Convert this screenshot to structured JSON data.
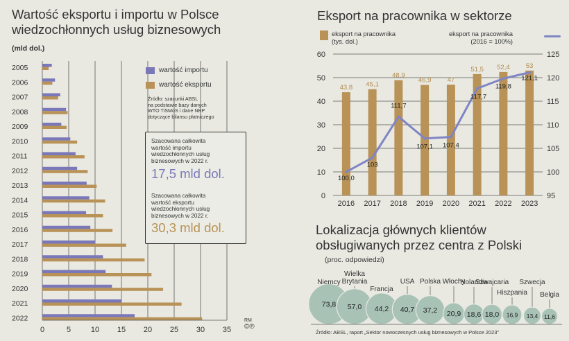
{
  "left_chart": {
    "title_line1": "Wartość eksportu i importu w Polsce",
    "title_line2": "wiedzochłonnych usług biznesowych",
    "unit": "(mld dol.)",
    "legend_import": "wartość importu",
    "legend_export": "wartość eksportu",
    "source_lines": [
      "Źródło: szacunki ABSL",
      "na podstawie bazy danych",
      "WTO TiSMoS i dane NBP",
      "dotyczące bilansu płatniczego"
    ],
    "box_import_text": [
      "Szacowana całkowita",
      "wartość importu",
      "wiedzochłonnych usług",
      "biznesowych w 2022 r."
    ],
    "box_import_value": "17,5 mld dol.",
    "box_export_text": [
      "Szacowana całkowita",
      "wartość eksportu",
      "wiedzochłonnych usług",
      "biznesowych w 2022 r."
    ],
    "box_export_value": "30,3 mld dol.",
    "credit_line1": "RM",
    "credit_line2": "©℗"
  },
  "right_chart": {
    "title": "Eksport na pracownika w sektorze",
    "legend_bar_line1": "eksport na pracownika",
    "legend_bar_line2": "(tys. dol.)",
    "legend_line_line1": "eksport na pracownika",
    "legend_line_line2": "(2016 = 100%)"
  },
  "bubble_chart": {
    "title_line1": "Lokalizacja głównych klientów",
    "title_line2": "obsługiwanych przez centra z Polski",
    "unit": "(proc. odpowiedzi)",
    "source": "Źródło: ABSL, raport „Sektor nowoczesnych usług biznesowych w Polsce 2023”"
  },
  "colors": {
    "import": "#7a78b8",
    "export": "#b89256",
    "line": "#7f84c4",
    "bubble": "#a8c2b6",
    "background": "#e9e9e2"
  },
  "chart_data": [
    {
      "type": "bar",
      "orientation": "horizontal",
      "title": "Wartość eksportu i importu w Polsce wiedzochłonnych usług biznesowych",
      "unit": "mld dol.",
      "categories": [
        "2005",
        "2006",
        "2007",
        "2008",
        "2009",
        "2010",
        "2011",
        "2012",
        "2013",
        "2014",
        "2015",
        "2016",
        "2017",
        "2018",
        "2019",
        "2020",
        "2021",
        "2022"
      ],
      "series": [
        {
          "name": "wartość importu",
          "values": [
            1.8,
            2.4,
            3.4,
            4.5,
            3.6,
            5.3,
            6.3,
            6.6,
            8.4,
            8.9,
            8.3,
            9.1,
            10.0,
            11.5,
            12.0,
            13.2,
            15.0,
            17.5
          ]
        },
        {
          "name": "wartość eksportu",
          "values": [
            1.2,
            1.9,
            3.0,
            4.8,
            4.6,
            6.6,
            8.0,
            8.6,
            10.3,
            11.9,
            11.5,
            13.3,
            15.9,
            19.4,
            20.7,
            22.9,
            26.4,
            30.3
          ]
        }
      ],
      "xlim": [
        0,
        35
      ],
      "xticks": [
        "0",
        "5",
        "10",
        "15",
        "20",
        "25",
        "30",
        "35"
      ]
    },
    {
      "type": "bar+line",
      "title": "Eksport na pracownika w sektorze",
      "categories": [
        "2016",
        "2017",
        "2018",
        "2019",
        "2020",
        "2021",
        "2022",
        "2023"
      ],
      "series": [
        {
          "name": "eksport na pracownika (tys. dol.)",
          "axis": "left",
          "values": [
            43.8,
            45.1,
            48.9,
            46.9,
            47,
            51.5,
            52.4,
            53
          ],
          "labels": [
            "43,8",
            "45,1",
            "48,9",
            "46,9",
            "47",
            "51,5",
            "52,4",
            "53"
          ]
        },
        {
          "name": "eksport na pracownika (2016 = 100%)",
          "axis": "right",
          "values": [
            100.0,
            103,
            111.7,
            107.1,
            107.4,
            117.7,
            119.8,
            121.1
          ],
          "labels": [
            "100,0",
            "103",
            "111,7",
            "107,1",
            "107,4",
            "117,7",
            "119,8",
            "121,1"
          ]
        }
      ],
      "ylim_left": [
        0,
        60
      ],
      "yticks_left": [
        "0",
        "10",
        "20",
        "30",
        "40",
        "50",
        "60"
      ],
      "ylim_right": [
        95,
        125
      ],
      "yticks_right": [
        "95",
        "100",
        "105",
        "110",
        "115",
        "120",
        "125"
      ]
    },
    {
      "type": "bubble",
      "title": "Lokalizacja głównych klientów obsługiwanych przez centra z Polski",
      "unit": "proc. odpowiedzi",
      "categories": [
        "Niemcy",
        "Wielka Brytania",
        "Francja",
        "USA",
        "Polska",
        "Włochy",
        "Holandia",
        "Szwajcaria",
        "Hiszpania",
        "Szwecja",
        "Belgia"
      ],
      "values": [
        73.8,
        57.0,
        44.2,
        40.7,
        37.2,
        20.9,
        18.6,
        18.0,
        16.9,
        13.4,
        11.6
      ],
      "labels": [
        "73,8",
        "57,0",
        "44,2",
        "40,7",
        "37,2",
        "20,9",
        "18,6",
        "18,0",
        "16,9",
        "13,4",
        "11,6"
      ],
      "category_label_lines": [
        [
          "Niemcy"
        ],
        [
          "Wielka",
          "Brytania"
        ],
        [
          "Francja"
        ],
        [
          "USA"
        ],
        [
          "Polska"
        ],
        [
          "Włochy"
        ],
        [
          "Holandia"
        ],
        [
          "Szwajcaria"
        ],
        [
          "Hiszpania"
        ],
        [
          "Szwecja"
        ],
        [
          "Belgia"
        ]
      ]
    }
  ]
}
